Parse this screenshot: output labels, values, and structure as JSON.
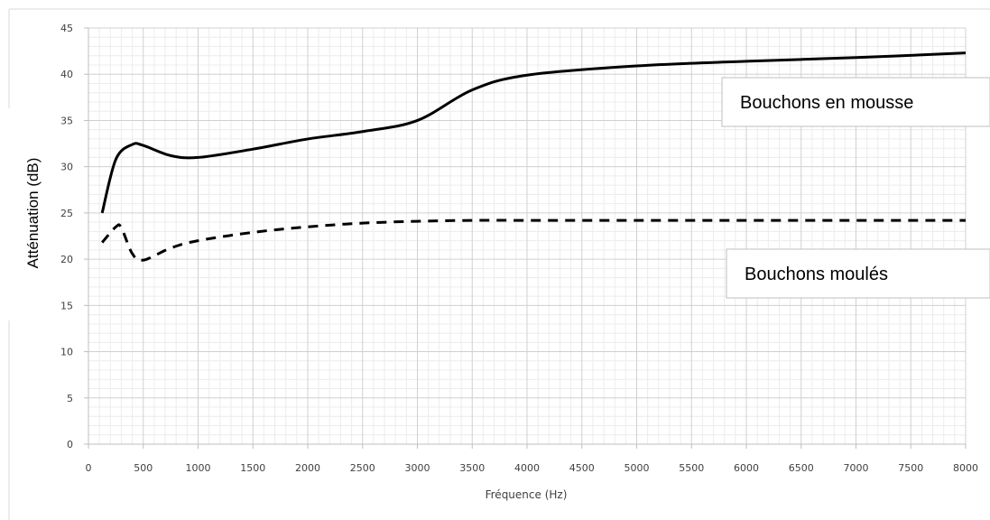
{
  "chart_data": {
    "type": "line",
    "xlabel": "Fréquence (Hz)",
    "ylabel": "Atténuation (dB)",
    "xlim": [
      0,
      8000
    ],
    "ylim": [
      0,
      45
    ],
    "x_ticks": [
      "0",
      "500",
      "1000",
      "1500",
      "2000",
      "2500",
      "3000",
      "3500",
      "4000",
      "4500",
      "5000",
      "5500",
      "6000",
      "6500",
      "7000",
      "7500",
      "8000"
    ],
    "y_ticks": [
      "0",
      "5",
      "10",
      "15",
      "20",
      "25",
      "30",
      "35",
      "40",
      "45"
    ],
    "grid": "major and minor",
    "series": [
      {
        "name": "Bouchons en mousse",
        "style": "solid",
        "color": "#000000",
        "x": [
          125,
          250,
          400,
          500,
          750,
          1000,
          1500,
          2000,
          2500,
          3000,
          3500,
          4000,
          5000,
          6000,
          7000,
          8000
        ],
        "y": [
          25,
          30.8,
          32.4,
          32.3,
          31.2,
          31,
          31.9,
          33,
          33.8,
          35,
          38.3,
          39.9,
          40.9,
          41.4,
          41.8,
          42.3
        ]
      },
      {
        "name": "Bouchons moulés",
        "style": "dashed",
        "color": "#000000",
        "x": [
          125,
          250,
          300,
          400,
          500,
          750,
          1000,
          1500,
          2000,
          2500,
          3000,
          3500,
          4000,
          5000,
          6000,
          7000,
          8000
        ],
        "y": [
          21.8,
          23.5,
          23.4,
          20.6,
          19.9,
          21.2,
          22,
          22.9,
          23.5,
          23.9,
          24.1,
          24.2,
          24.2,
          24.2,
          24.2,
          24.2,
          24.2
        ]
      }
    ],
    "legend_labels": [
      "Bouchons en mousse",
      "Bouchons moulés"
    ]
  }
}
